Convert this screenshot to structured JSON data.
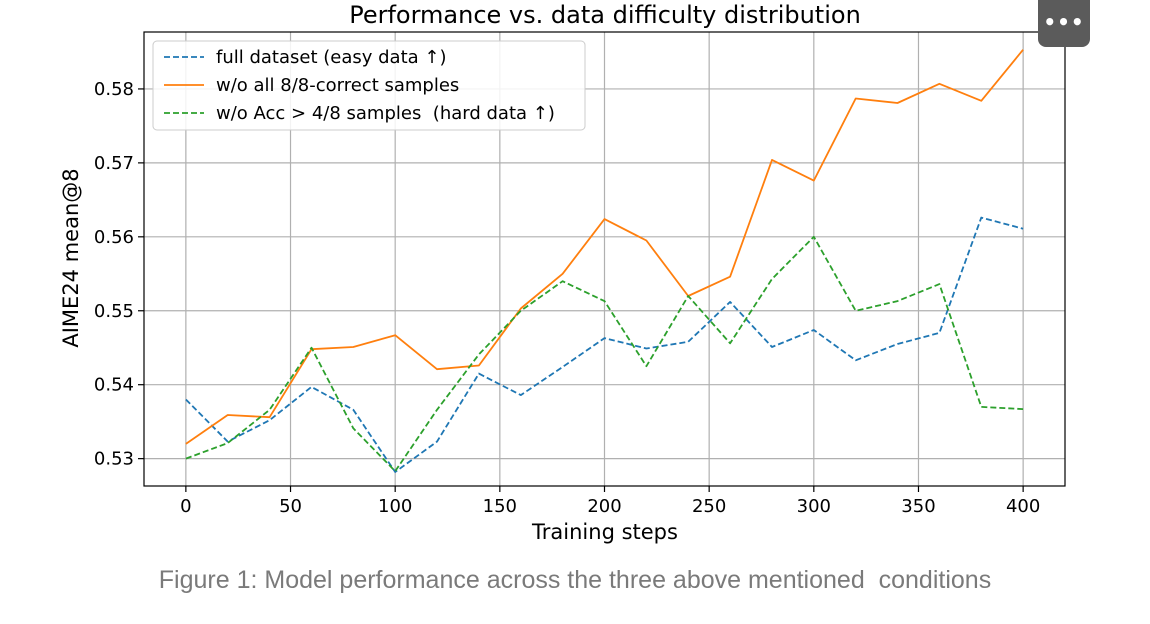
{
  "more_button": {
    "label": "•••",
    "icon": "more-horizontal-icon"
  },
  "caption": "Figure 1: Model performance across the three above mentioned  conditions",
  "chart_data": {
    "type": "line",
    "title": "Performance vs. data difficulty distribution",
    "xlabel": "Training steps",
    "ylabel": "AIME24 mean@8",
    "xlim": [
      -20,
      420
    ],
    "ylim": [
      0.5263,
      0.5877
    ],
    "x_ticks": [
      0,
      50,
      100,
      150,
      200,
      250,
      300,
      350,
      400
    ],
    "y_ticks": [
      0.53,
      0.54,
      0.55,
      0.56,
      0.57,
      0.58
    ],
    "grid": true,
    "legend_position": "top-left",
    "x": [
      0,
      20,
      40,
      60,
      80,
      100,
      120,
      140,
      160,
      180,
      200,
      220,
      240,
      260,
      280,
      300,
      320,
      340,
      360,
      380,
      400
    ],
    "series": [
      {
        "name": "full dataset (easy data ↑)",
        "color": "#1f77b4",
        "style": "dashed",
        "values": [
          0.538,
          0.5323,
          0.5352,
          0.5397,
          0.5366,
          0.5282,
          0.5323,
          0.5415,
          0.5386,
          0.5424,
          0.5463,
          0.5449,
          0.5458,
          0.5512,
          0.5451,
          0.5474,
          0.5433,
          0.5455,
          0.547,
          0.5626,
          0.5611
        ]
      },
      {
        "name": "w/o all 8/8-correct samples",
        "color": "#ff7f0e",
        "style": "solid",
        "values": [
          0.532,
          0.5359,
          0.5356,
          0.5448,
          0.5451,
          0.5467,
          0.5421,
          0.5426,
          0.5503,
          0.555,
          0.5624,
          0.5595,
          0.552,
          0.5546,
          0.5704,
          0.5676,
          0.5787,
          0.5781,
          0.5807,
          0.5784,
          0.5853
        ]
      },
      {
        "name": "w/o Acc > 4/8 samples  (hard data ↑)",
        "color": "#2ca02c",
        "style": "dashed",
        "values": [
          0.53,
          0.5321,
          0.5366,
          0.545,
          0.5341,
          0.5283,
          0.5366,
          0.5441,
          0.55,
          0.554,
          0.5513,
          0.5425,
          0.552,
          0.5456,
          0.5543,
          0.56,
          0.55,
          0.5513,
          0.5536,
          0.537,
          0.5367
        ]
      }
    ]
  }
}
